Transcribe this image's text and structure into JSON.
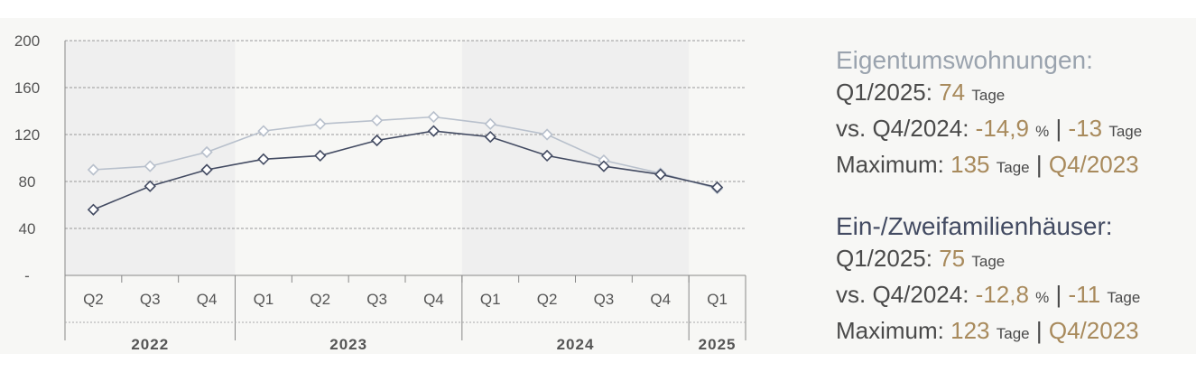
{
  "chart_data": {
    "type": "line",
    "categories": [
      "Q2",
      "Q3",
      "Q4",
      "Q1",
      "Q2",
      "Q3",
      "Q4",
      "Q1",
      "Q2",
      "Q3",
      "Q4",
      "Q1"
    ],
    "year_groups": [
      {
        "label": "2022",
        "start": 0,
        "end": 2
      },
      {
        "label": "2023",
        "start": 3,
        "end": 6
      },
      {
        "label": "2024",
        "start": 7,
        "end": 10
      },
      {
        "label": "2025",
        "start": 11,
        "end": 11
      }
    ],
    "ylim": [
      0,
      200
    ],
    "yticks": [
      {
        "value": 200,
        "label": "200"
      },
      {
        "value": 160,
        "label": "160"
      },
      {
        "value": 120,
        "label": "120"
      },
      {
        "value": 80,
        "label": "80"
      },
      {
        "value": 40,
        "label": "40"
      },
      {
        "value": 0,
        "label": "-"
      }
    ],
    "grid": true,
    "series": [
      {
        "name": "Eigentumswohnungen",
        "color": "#b8c0cc",
        "values": [
          90,
          93,
          105,
          123,
          129,
          132,
          135,
          129,
          120,
          98,
          87,
          74
        ]
      },
      {
        "name": "Ein-/Zweifamilienhäuser",
        "color": "#434b62",
        "values": [
          56,
          76,
          90,
          99,
          102,
          115,
          123,
          118,
          102,
          93,
          86,
          75
        ]
      }
    ]
  },
  "info": {
    "block1": {
      "title": "Eigentumswohnungen:",
      "title_color": "#9aa3ae",
      "q_label": "Q1/2025:",
      "q_value": "74",
      "q_unit": "Tage",
      "vs_label": "vs. Q4/2024:",
      "vs_pct": "-14,9",
      "vs_pct_unit": "%",
      "vs_sep": "|",
      "vs_abs": "-13",
      "vs_abs_unit": "Tage",
      "max_label": "Maximum:",
      "max_value": "135",
      "max_unit": "Tage",
      "max_sep": "|",
      "max_period": "Q4/2023"
    },
    "block2": {
      "title": "Ein-/Zweifamilienhäuser:",
      "title_color": "#434b62",
      "q_label": "Q1/2025:",
      "q_value": "75",
      "q_unit": "Tage",
      "vs_label": "vs. Q4/2024:",
      "vs_pct": "-12,8",
      "vs_pct_unit": "%",
      "vs_sep": "|",
      "vs_abs": "-11",
      "vs_abs_unit": "Tage",
      "max_label": "Maximum:",
      "max_value": "123",
      "max_unit": "Tage",
      "max_sep": "|",
      "max_period": "Q4/2023"
    }
  }
}
